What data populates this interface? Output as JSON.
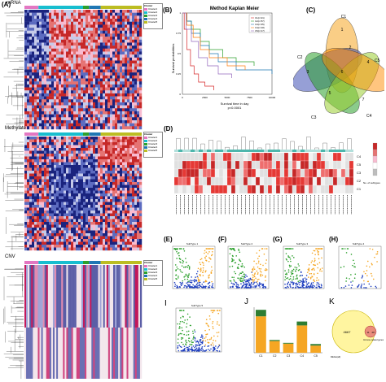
{
  "panels": {
    "A": {
      "letter": "(A)",
      "row_labels": [
        "mRNA",
        "Methylate",
        "CNV"
      ],
      "legend_title": "Cluster",
      "legend_items": [
        "Cluster1",
        "Cluster2",
        "Cluster3",
        "Cluster4",
        "Cluster5"
      ]
    },
    "B": {
      "letter": "(B)",
      "title": "Method Kaplan Meier",
      "ylabel": "Survival probabilities",
      "xlabel": "Survival time in day",
      "pvalue": "p<0.0001",
      "legend": [
        "C1(n=21)",
        "C2(n=57)",
        "C3(n=35)",
        "C4(n=18)",
        "C5(n=17)"
      ]
    },
    "C": {
      "letter": "(C)",
      "sets": [
        "C1",
        "C2",
        "C3",
        "C4",
        "C5"
      ],
      "numbers": [
        "1",
        "3",
        "7",
        "6",
        "5",
        "4",
        "2"
      ]
    },
    "D": {
      "letter": "(D)",
      "rows": [
        "C4",
        "C5",
        "C3",
        "C2",
        "C1"
      ],
      "legend_title": "No. of subtypes"
    },
    "E": {
      "letter": "(E)",
      "title": "SubType 1"
    },
    "F": {
      "letter": "(F)",
      "title": "SubType 2"
    },
    "G": {
      "letter": "(G)",
      "title": "SubType 3"
    },
    "H": {
      "letter": "(H)",
      "title": "SubType 4"
    },
    "I": {
      "letter": "I",
      "title": "SubType 5"
    },
    "J": {
      "letter": "J",
      "categories": [
        "C1",
        "C2",
        "C3",
        "C4",
        "C5"
      ]
    },
    "K": {
      "letter": "K",
      "big_value": "4667",
      "small_value": "49",
      "overlap_value": "11",
      "big_label": "DEGs(all)",
      "small_label": "Immune-related genes"
    }
  },
  "colors": {
    "cluster1": "#e377c2",
    "cluster2": "#17becf",
    "cluster3": "#2ca02c",
    "cluster4": "#1f77b4",
    "cluster5": "#bcbd22",
    "heat_high": "#d62728",
    "heat_low": "#1f3a93",
    "volcano_up": "#f5a623",
    "volcano_down": "#2ca02c",
    "volcano_ns": "#1f3fbf"
  },
  "chart_data": [
    {
      "type": "line",
      "title": "Method Kaplan Meier",
      "xlabel": "Survival time in day",
      "ylabel": "Survival probabilities",
      "xlim": [
        0,
        10000
      ],
      "ylim": [
        0,
        1
      ],
      "series": [
        {
          "name": "C1(n=21)",
          "x": [
            0,
            200,
            500,
            900,
            1300,
            1800,
            2500,
            3500
          ],
          "y": [
            1.0,
            0.8,
            0.55,
            0.35,
            0.25,
            0.15,
            0.1,
            0.05
          ]
        },
        {
          "name": "C2(n=57)",
          "x": [
            0,
            500,
            1000,
            2000,
            3000,
            4500,
            6000,
            8000
          ],
          "y": [
            1.0,
            0.9,
            0.8,
            0.65,
            0.55,
            0.45,
            0.4,
            0.35
          ]
        },
        {
          "name": "C3(n=35)",
          "x": [
            0,
            500,
            1000,
            2000,
            3000,
            4000,
            6000,
            10000
          ],
          "y": [
            1.0,
            0.9,
            0.75,
            0.6,
            0.5,
            0.4,
            0.3,
            0.25
          ]
        },
        {
          "name": "C4(n=18)",
          "x": [
            0,
            500,
            1200,
            2000,
            3000,
            5000,
            7000
          ],
          "y": [
            1.0,
            0.85,
            0.7,
            0.55,
            0.45,
            0.35,
            0.3
          ]
        },
        {
          "name": "C5(n=17)",
          "x": [
            0,
            400,
            1000,
            1800,
            2800,
            4000,
            5500
          ],
          "y": [
            1.0,
            0.8,
            0.65,
            0.45,
            0.35,
            0.25,
            0.2
          ]
        }
      ]
    },
    {
      "type": "bar",
      "categories": [
        "C1",
        "C2",
        "C3",
        "C4",
        "C5"
      ],
      "series": [
        {
          "name": "",
          "values": [
            2800,
            900,
            700,
            2100,
            550
          ]
        },
        {
          "name": "",
          "values": [
            500,
            80,
            60,
            300,
            120
          ]
        }
      ]
    }
  ]
}
